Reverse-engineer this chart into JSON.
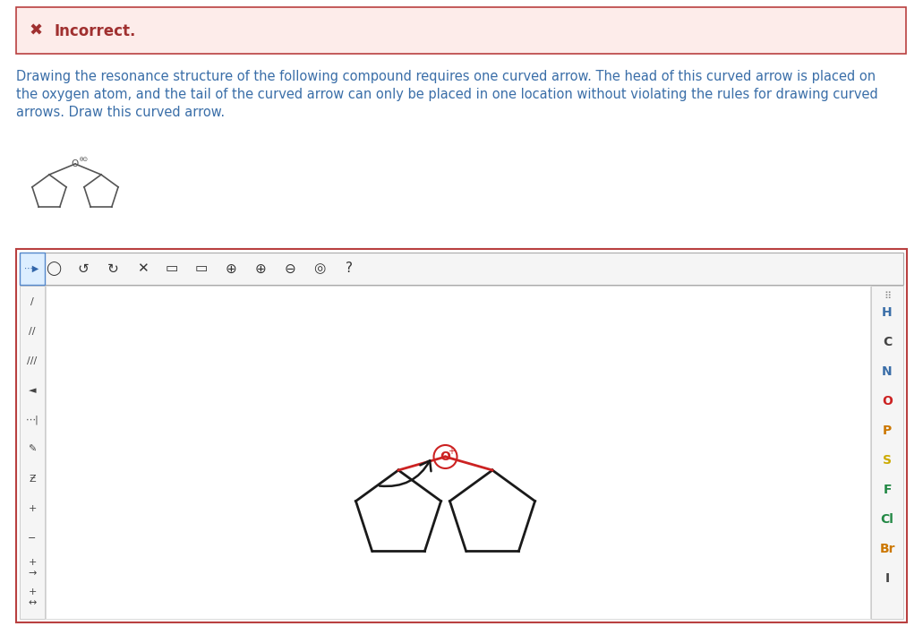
{
  "bg_color": "#ffffff",
  "incorrect_box_bg": "#fdecea",
  "incorrect_box_border": "#b94040",
  "incorrect_text_color": "#a03030",
  "body_text_color": "#3a6ea8",
  "right_panel_labels": [
    "H",
    "C",
    "N",
    "O",
    "P",
    "S",
    "F",
    "Cl",
    "Br",
    "I"
  ],
  "right_panel_colors": [
    "#3a6ea8",
    "#444444",
    "#3a6ea8",
    "#cc2222",
    "#cc7700",
    "#ccaa00",
    "#228844",
    "#228844",
    "#cc7700",
    "#444444"
  ],
  "fig_width": 10.31,
  "fig_height": 6.99,
  "dpi": 100
}
